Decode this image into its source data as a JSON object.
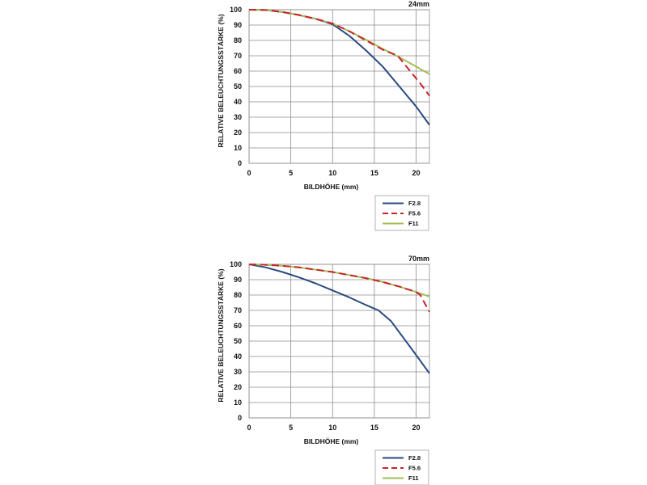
{
  "colors": {
    "f28": "#2b4a80",
    "f56": "#c8242b",
    "f11": "#a4be56"
  },
  "chart_data": [
    {
      "type": "line",
      "title": "24mm",
      "xlabel": "BILDHÖHE (mm)",
      "ylabel": "RELATIVE BELEUCHTUNGSSTÄRKE (%)",
      "xlim": [
        0,
        21.6
      ],
      "ylim": [
        0,
        100
      ],
      "xticks": [
        "0",
        "5",
        "10",
        "15",
        "20"
      ],
      "yticks": [
        "0",
        "10",
        "20",
        "30",
        "40",
        "50",
        "60",
        "70",
        "80",
        "90",
        "100"
      ],
      "grid": true,
      "legend_position": "below-right",
      "series": [
        {
          "name": "F2.8",
          "style": "solid",
          "color": "#2b4a80",
          "x": [
            0,
            2,
            4,
            6,
            8,
            10,
            12,
            14,
            16,
            18,
            20,
            21.6
          ],
          "y": [
            100,
            99.8,
            98.5,
            96.5,
            94,
            90.5,
            83,
            73.5,
            63,
            50,
            37,
            25
          ]
        },
        {
          "name": "F5.6",
          "style": "dashed",
          "color": "#c8242b",
          "x": [
            0,
            2,
            4,
            6,
            8,
            10,
            12,
            14,
            16,
            17.8,
            19,
            20.5,
            21.6
          ],
          "y": [
            100,
            99.8,
            98.5,
            96.5,
            94,
            91,
            86,
            80,
            74,
            70,
            62,
            52,
            44
          ]
        },
        {
          "name": "F11",
          "style": "solid",
          "color": "#a4be56",
          "x": [
            0,
            2,
            4,
            6,
            8,
            10,
            12,
            14,
            16,
            18,
            20,
            21.6
          ],
          "y": [
            100,
            99.8,
            98.5,
            96.5,
            94,
            91,
            86,
            80.5,
            74.5,
            69,
            63,
            58
          ]
        }
      ]
    },
    {
      "type": "line",
      "title": "70mm",
      "xlabel": "BILDHÖHE (mm)",
      "ylabel": "RELATIVE BELEUCHTUNGSSTÄRKE (%)",
      "xlim": [
        0,
        21.6
      ],
      "ylim": [
        0,
        100
      ],
      "xticks": [
        "0",
        "5",
        "10",
        "15",
        "20"
      ],
      "yticks": [
        "0",
        "10",
        "20",
        "30",
        "40",
        "50",
        "60",
        "70",
        "80",
        "90",
        "100"
      ],
      "grid": true,
      "legend_position": "below-right",
      "series": [
        {
          "name": "F2.8",
          "style": "solid",
          "color": "#2b4a80",
          "x": [
            0,
            2,
            4,
            6,
            8,
            10,
            12,
            14,
            15.5,
            17,
            18.5,
            20,
            21.6
          ],
          "y": [
            100,
            98,
            95,
            91.5,
            87.5,
            83,
            78.5,
            73.5,
            70,
            63,
            52,
            41,
            29
          ]
        },
        {
          "name": "F5.6",
          "style": "dashed",
          "color": "#c8242b",
          "x": [
            0,
            2,
            4,
            6,
            8,
            10,
            12,
            14,
            16,
            18,
            20,
            20.5,
            21,
            21.6
          ],
          "y": [
            100,
            99.7,
            99,
            98,
            96.5,
            95,
            93,
            91,
            88.5,
            85.5,
            82,
            80,
            75,
            69
          ]
        },
        {
          "name": "F11",
          "style": "solid",
          "color": "#a4be56",
          "x": [
            0,
            2,
            4,
            6,
            8,
            10,
            12,
            14,
            16,
            18,
            20,
            21.6
          ],
          "y": [
            100,
            99.7,
            99,
            98,
            96.5,
            95,
            93,
            91,
            88.5,
            85.5,
            82,
            79
          ]
        }
      ]
    }
  ]
}
